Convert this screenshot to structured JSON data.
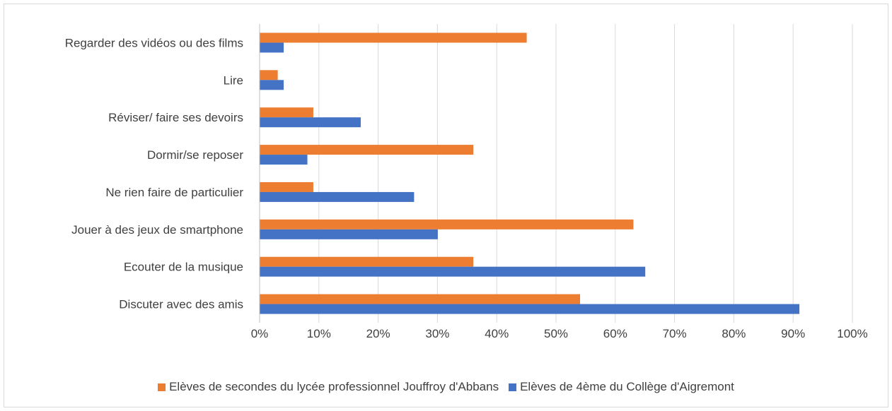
{
  "chart_data": {
    "type": "bar",
    "orientation": "horizontal",
    "title": "",
    "xlabel": "",
    "ylabel": "",
    "xlim": [
      0,
      100
    ],
    "x_ticks": [
      "0%",
      "10%",
      "20%",
      "30%",
      "40%",
      "50%",
      "60%",
      "70%",
      "80%",
      "90%",
      "100%"
    ],
    "grid": true,
    "legend_position": "bottom",
    "categories": [
      "Regarder des vidéos ou des films",
      "Lire",
      "Réviser/ faire ses devoirs",
      "Dormir/se reposer",
      "Ne rien faire de particulier",
      "Jouer à des jeux de smartphone",
      "Ecouter de la musique",
      "Discuter avec des amis"
    ],
    "series": [
      {
        "name": "Elèves de secondes du lycée professionnel Jouffroy d'Abbans",
        "color": "#ED7D31",
        "values": [
          45,
          3,
          9,
          36,
          9,
          63,
          36,
          54
        ]
      },
      {
        "name": "Elèves de 4ème du Collège d'Aigremont",
        "color": "#4472C4",
        "values": [
          4,
          4,
          17,
          8,
          26,
          30,
          65,
          91
        ]
      }
    ]
  }
}
